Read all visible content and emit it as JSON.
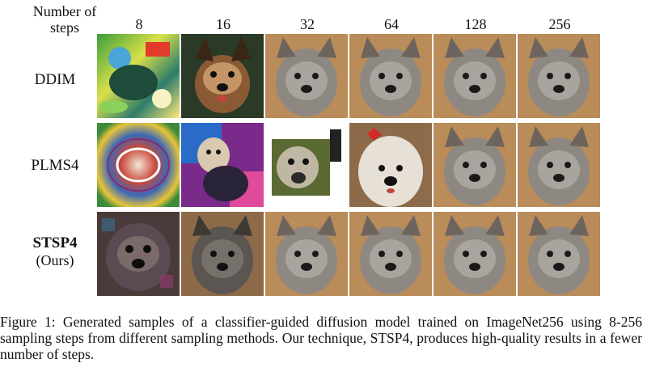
{
  "figure": {
    "header_label": "Number of steps",
    "columns": [
      "8",
      "16",
      "32",
      "64",
      "128",
      "256"
    ],
    "rows": [
      {
        "method": "DDIM",
        "note": ""
      },
      {
        "method": "PLMS4",
        "note": ""
      },
      {
        "method": "STSP4",
        "note": "(Ours)"
      }
    ],
    "samples": [
      [
        "noisy-colorful-creature",
        "yorkshire-terrier",
        "cairn-terrier",
        "cairn-terrier",
        "cairn-terrier",
        "cairn-terrier"
      ],
      [
        "psychedelic-noise-pattern",
        "dog-on-colorful-background",
        "distorted-dog-white-frame",
        "white-terrier-red-bow",
        "cairn-terrier",
        "cairn-terrier"
      ],
      [
        "dark-noisy-dog",
        "cairn-terrier-dark",
        "cairn-terrier",
        "cairn-terrier",
        "cairn-terrier",
        "cairn-terrier"
      ]
    ],
    "caption": "Figure 1:  Generated samples of a classifier-guided diffusion model trained on ImageNet256 using 8-256 sampling steps from different sampling methods. Our technique, STSP4, produces high-quality results in a fewer number of steps."
  }
}
